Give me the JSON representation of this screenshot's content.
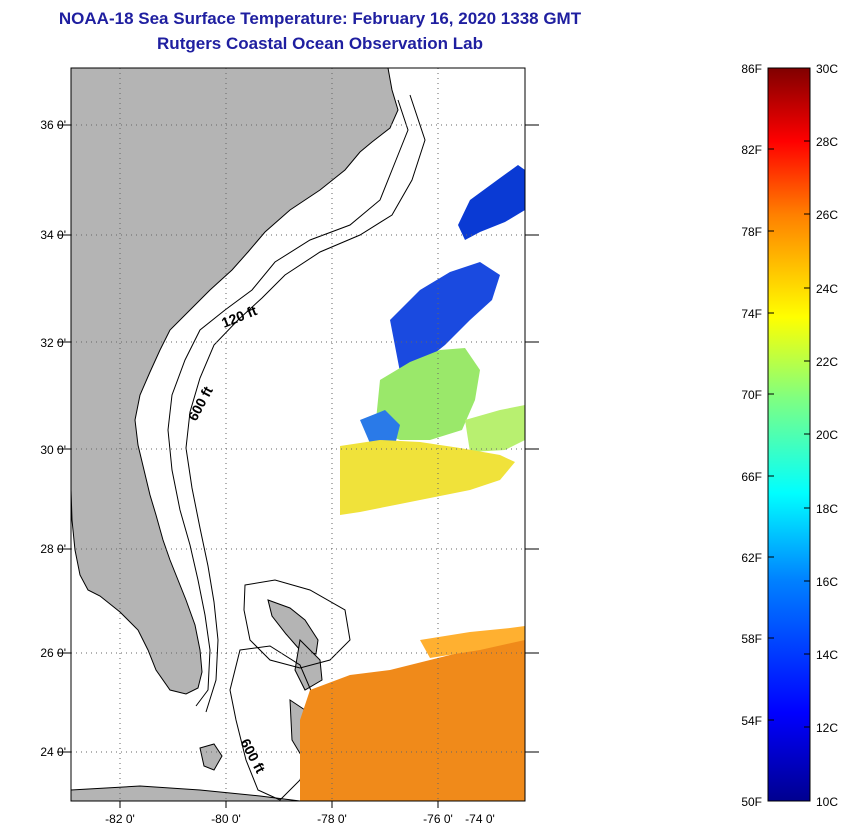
{
  "title": {
    "line1": "NOAA-18 Sea Surface Temperature:  February 16, 2020 1338 GMT",
    "line2": "Rutgers Coastal Ocean Observation Lab"
  },
  "map": {
    "y_ticks": [
      "36 0'",
      "34 0'",
      "32 0'",
      "30 0'",
      "28 0'",
      "26 0'",
      "24 0'"
    ],
    "x_ticks": [
      "-82 0'",
      "-80 0'",
      "-78 0'",
      "-76 0'",
      "-74 0'"
    ],
    "isobath_labels": [
      "120 ft",
      "600 ft",
      "600 ft"
    ]
  },
  "colorbar": {
    "f_labels": [
      "86F",
      "82F",
      "78F",
      "74F",
      "70F",
      "66F",
      "62F",
      "58F",
      "54F",
      "50F"
    ],
    "c_labels": [
      "30C",
      "28C",
      "26C",
      "24C",
      "22C",
      "20C",
      "18C",
      "16C",
      "14C",
      "12C",
      "10C"
    ],
    "colors": [
      "#00008f",
      "#0000ff",
      "#0080ff",
      "#00ffff",
      "#80ff80",
      "#ffff00",
      "#ff8000",
      "#ff0000",
      "#800000"
    ]
  }
}
